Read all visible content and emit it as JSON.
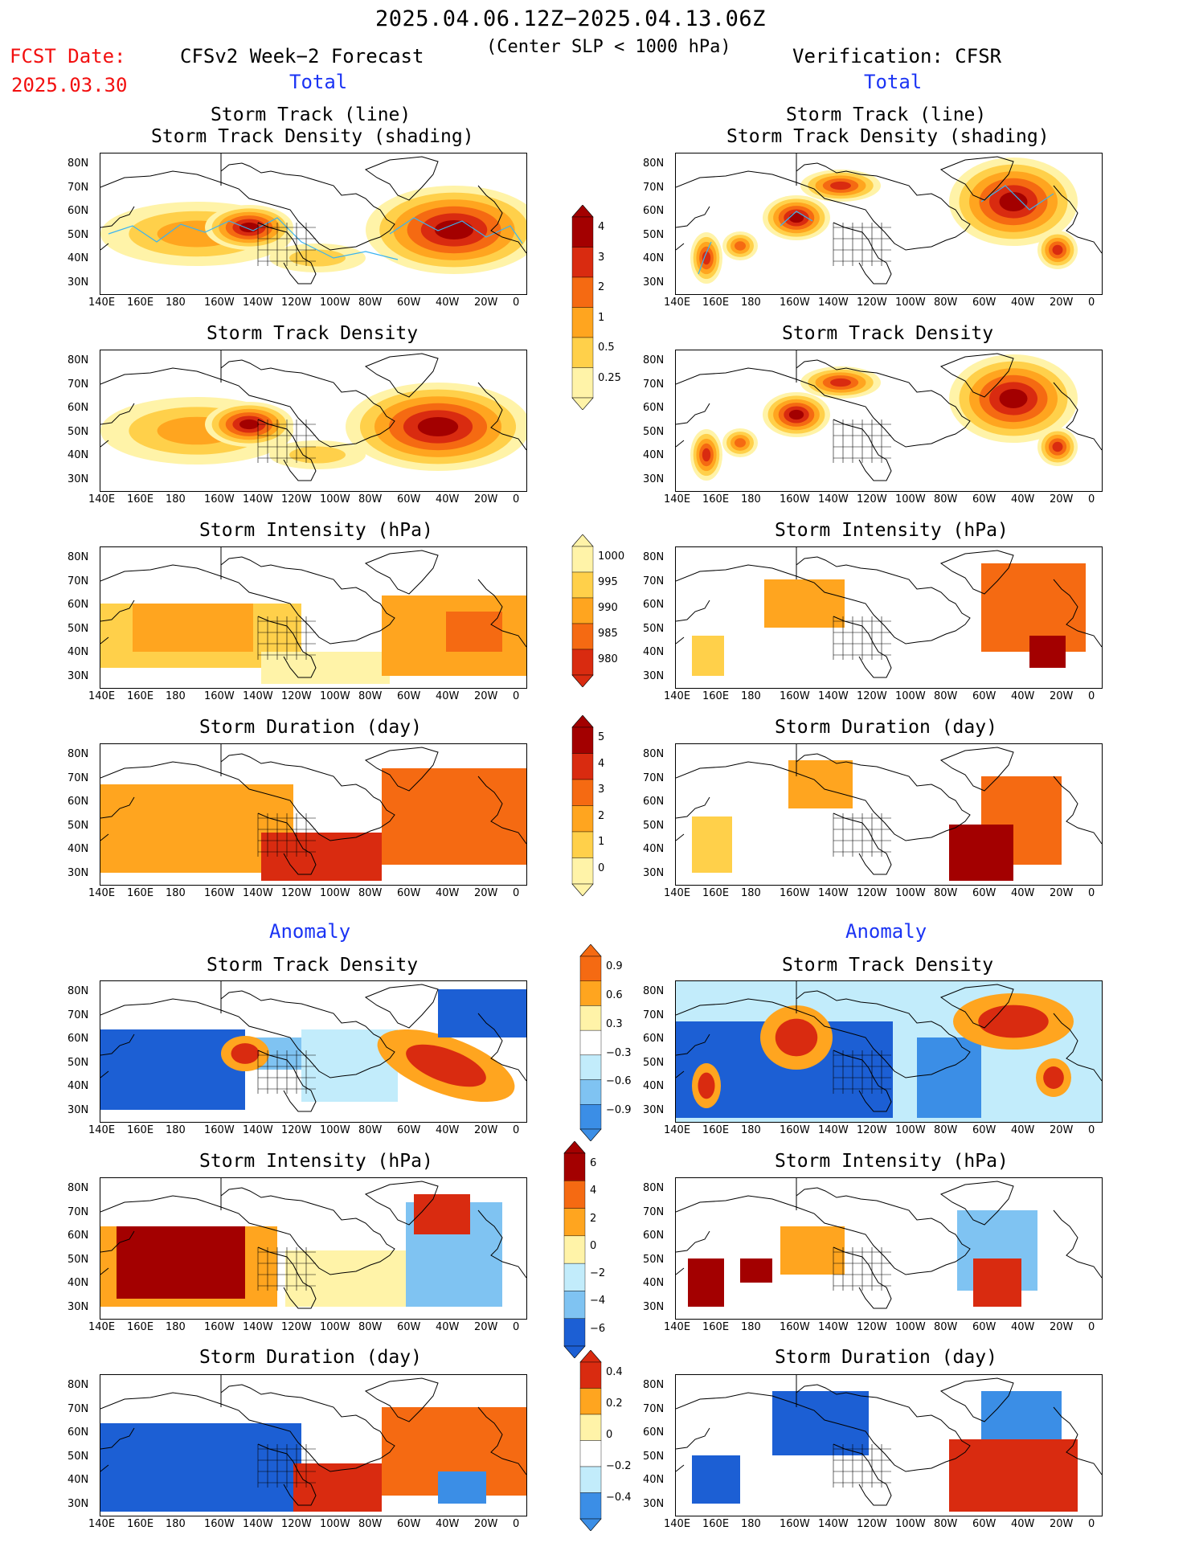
{
  "header": {
    "date_range": "2025.04.06.12Z−2025.04.13.06Z",
    "criterion": "(Center SLP < 1000 hPa)",
    "fcst_label": "FCST Date:",
    "fcst_date": "2025.03.30",
    "left_model": "CFSv2 Week−2 Forecast",
    "right_model": "Verification: CFSR",
    "section_total": "Total",
    "section_anomaly": "Anomaly"
  },
  "panel_titles": {
    "track_line": "Storm Track (line)",
    "track_shading": "Storm Track Density (shading)",
    "density": "Storm Track Density",
    "intensity": "Storm Intensity (hPa)",
    "duration": "Storm Duration (day)"
  },
  "axes": {
    "lat_labels": [
      "80N",
      "70N",
      "60N",
      "50N",
      "40N",
      "30N"
    ],
    "lon_labels": [
      "140E",
      "160E",
      "180",
      "160W",
      "140W",
      "120W",
      "100W",
      "80W",
      "60W",
      "40W",
      "20W",
      "0"
    ]
  },
  "colorbars": {
    "density_total": [
      "4",
      "3",
      "2",
      "1",
      "0.5",
      "0.25"
    ],
    "intensity_total": [
      "1000",
      "995",
      "990",
      "985",
      "980"
    ],
    "duration_total": [
      "5",
      "4",
      "3",
      "2",
      "1",
      "0"
    ],
    "density_anom": [
      "0.9",
      "0.6",
      "0.3",
      "−0.3",
      "−0.6",
      "−0.9"
    ],
    "intensity_anom": [
      "6",
      "4",
      "2",
      "0",
      "−2",
      "−4",
      "−6"
    ],
    "duration_anom": [
      "0.4",
      "0.2",
      "0",
      "−0.2",
      "−0.4"
    ]
  },
  "colors": {
    "warm": [
      "#fff3a8",
      "#ffd04a",
      "#ffa51f",
      "#f56a12",
      "#d92b10",
      "#a30000"
    ],
    "cool": [
      "#c2ecfb",
      "#7fc3f2",
      "#3b8ee6",
      "#1c5fd4"
    ],
    "track_line": "#3ab3f0",
    "title_red": "#f20f0f",
    "title_blue": "#1b34f4"
  }
}
